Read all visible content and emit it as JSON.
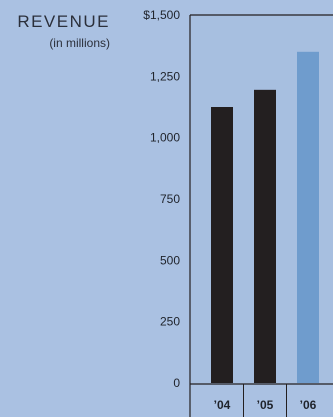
{
  "chart_data": {
    "type": "bar",
    "title": "REVENUE",
    "subtitle": "(in millions)",
    "categories": [
      "’04",
      "’05",
      "’06"
    ],
    "values": [
      1125,
      1195,
      1350
    ],
    "ylim": [
      0,
      1500
    ],
    "yticks": [
      0,
      250,
      500,
      750,
      1000,
      1250,
      1500
    ],
    "ytick_labels": [
      "0",
      "250",
      "500",
      "750",
      "1,000",
      "1,250",
      "$1,500"
    ],
    "xlabel": "",
    "ylabel": "",
    "grid": false,
    "bar_colors": [
      "#231f20",
      "#231f20",
      "#6f9ccd"
    ],
    "background_color": "#aac1e2",
    "plot_background_color": "#a7bfe0",
    "axis_color": "#231f20"
  }
}
